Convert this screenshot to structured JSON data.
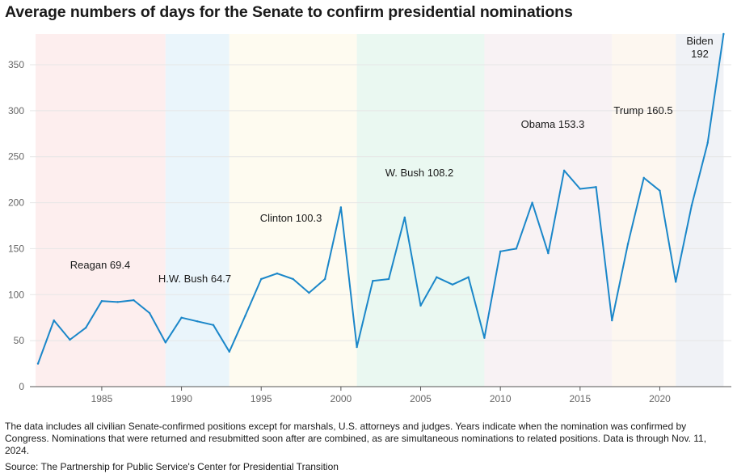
{
  "title": "Average numbers of days for the Senate to confirm presidential nominations",
  "note": "The data includes all civilian Senate-confirmed positions except for marshals, U.S. attorneys and judges. Years indicate when the nomination was confirmed by Congress. Nominations that were returned and resubmitted soon after are combined, as are simultaneous nominations to related positions. Data is through Nov. 11, 2024.",
  "source": "Source: The Partnership for Public Service's Center for Presidential Transition",
  "colors": {
    "line": "#1b87c9",
    "grid": "#e6e6e6",
    "axis": "#555555"
  },
  "chart_data": {
    "type": "line",
    "xlim": [
      1981,
      2024.6
    ],
    "ylim": [
      0,
      385
    ],
    "xticks": [
      1985,
      1990,
      1995,
      2000,
      2005,
      2010,
      2015,
      2020
    ],
    "yticks": [
      0,
      50,
      100,
      150,
      200,
      250,
      300,
      350
    ],
    "grid": true,
    "series": [
      {
        "x": [
          1981,
          1982,
          1983,
          1984,
          1985,
          1986,
          1987,
          1988,
          1989,
          1990,
          1991,
          1992,
          1993,
          1994,
          1995,
          1996,
          1997,
          1998,
          1999,
          2000,
          2001,
          2002,
          2003,
          2004,
          2005,
          2006,
          2007,
          2008,
          2009,
          2010,
          2011,
          2012,
          2013,
          2014,
          2015,
          2016,
          2017,
          2018,
          2019,
          2020,
          2021,
          2022,
          2023,
          2024
        ],
        "values": [
          25,
          72,
          51,
          64,
          93,
          92,
          94,
          80,
          48,
          75,
          71,
          67,
          38,
          77,
          117,
          123,
          117,
          102,
          117,
          195,
          43,
          115,
          117,
          184,
          88,
          119,
          111,
          119,
          53,
          147,
          150,
          200,
          145,
          235,
          215,
          217,
          72,
          155,
          227,
          213,
          114,
          197,
          265,
          385
        ]
      }
    ],
    "administrations": [
      {
        "label": "Reagan 69.4",
        "start": 1981,
        "end": 1989,
        "color": "#fdeeee"
      },
      {
        "label": "H.W. Bush 64.7",
        "start": 1989,
        "end": 1993,
        "color": "#eaf5fb"
      },
      {
        "label": "Clinton 100.3",
        "start": 1993,
        "end": 2001,
        "color": "#fefbf0"
      },
      {
        "label": "W. Bush 108.2",
        "start": 2001,
        "end": 2009,
        "color": "#eaf8f1"
      },
      {
        "label": "Obama 153.3",
        "start": 2009,
        "end": 2017,
        "color": "#f8f2f4"
      },
      {
        "label": "Trump 160.5",
        "start": 2017,
        "end": 2021,
        "color": "#fdf7f0"
      },
      {
        "label": "Biden\n192",
        "start": 2021,
        "end": 2024,
        "color": "#f0f2f6"
      }
    ]
  }
}
